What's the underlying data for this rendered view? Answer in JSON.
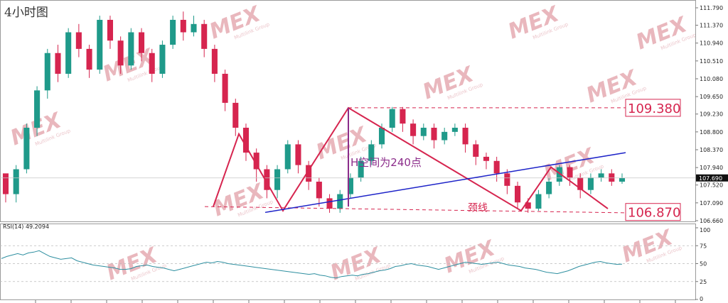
{
  "chart_data": [
    {
      "type": "candlestick",
      "title": "4小时图",
      "ylim": [
        106.66,
        111.79
      ],
      "y_ticks": [
        111.79,
        111.37,
        110.94,
        110.51,
        110.08,
        109.65,
        109.23,
        108.8,
        108.37,
        107.94,
        107.52,
        107.09,
        106.66
      ],
      "y_tick_labels": [
        "111.790",
        "111.370",
        "110.940",
        "110.510",
        "110.080",
        "109.650",
        "109.230",
        "108.800",
        "108.370",
        "107.940",
        "107.520",
        "107.090",
        "106.660"
      ],
      "current_price": 107.69,
      "current_price_label": "107.690",
      "candles": [
        [
          107.8,
          107.3,
          107.6,
          107.1
        ],
        [
          107.3,
          107.9,
          108.0,
          107.1
        ],
        [
          107.9,
          108.9,
          109.0,
          107.8
        ],
        [
          108.9,
          109.8,
          109.9,
          108.7
        ],
        [
          109.8,
          110.7,
          110.8,
          109.6
        ],
        [
          110.7,
          110.2,
          110.9,
          110.0
        ],
        [
          110.2,
          111.2,
          111.3,
          110.1
        ],
        [
          111.2,
          110.8,
          111.4,
          110.6
        ],
        [
          110.8,
          110.3,
          110.9,
          110.1
        ],
        [
          110.3,
          111.5,
          111.6,
          110.2
        ],
        [
          111.5,
          111.0,
          111.6,
          110.8
        ],
        [
          111.0,
          110.4,
          111.1,
          110.2
        ],
        [
          110.4,
          111.2,
          111.3,
          110.3
        ],
        [
          111.2,
          110.7,
          111.3,
          110.5
        ],
        [
          110.7,
          110.2,
          110.8,
          110.0
        ],
        [
          110.2,
          110.9,
          111.0,
          110.1
        ],
        [
          110.9,
          111.5,
          111.6,
          110.8
        ],
        [
          111.5,
          111.2,
          111.7,
          111.0
        ],
        [
          111.2,
          111.4,
          111.6,
          111.1
        ],
        [
          111.4,
          110.8,
          111.5,
          110.6
        ],
        [
          110.8,
          110.2,
          110.9,
          110.0
        ],
        [
          110.2,
          109.5,
          110.3,
          109.3
        ],
        [
          109.5,
          108.9,
          109.6,
          108.7
        ],
        [
          108.9,
          108.3,
          109.0,
          108.1
        ],
        [
          108.3,
          107.9,
          108.4,
          107.6
        ],
        [
          107.9,
          107.4,
          108.0,
          107.2
        ],
        [
          107.4,
          107.9,
          108.0,
          107.2
        ],
        [
          107.9,
          108.5,
          108.6,
          107.8
        ],
        [
          108.5,
          108.0,
          108.6,
          107.8
        ],
        [
          108.0,
          107.6,
          108.1,
          107.4
        ],
        [
          107.6,
          107.2,
          107.7,
          107.0
        ],
        [
          107.2,
          106.95,
          107.3,
          106.85
        ],
        [
          106.95,
          107.3,
          107.4,
          106.85
        ],
        [
          107.3,
          107.7,
          107.8,
          107.2
        ],
        [
          107.7,
          108.1,
          108.2,
          107.6
        ],
        [
          108.1,
          108.5,
          108.6,
          108.0
        ],
        [
          108.5,
          108.9,
          109.0,
          108.4
        ],
        [
          108.9,
          109.35,
          109.4,
          108.8
        ],
        [
          109.35,
          109.0,
          109.4,
          108.8
        ],
        [
          109.0,
          108.7,
          109.1,
          108.5
        ],
        [
          108.7,
          108.9,
          109.0,
          108.6
        ],
        [
          108.9,
          108.6,
          109.0,
          108.4
        ],
        [
          108.6,
          108.8,
          108.9,
          108.5
        ],
        [
          108.8,
          108.9,
          109.0,
          108.7
        ],
        [
          108.9,
          108.5,
          109.0,
          108.3
        ],
        [
          108.5,
          108.2,
          108.6,
          108.0
        ],
        [
          108.2,
          108.1,
          108.3,
          107.9
        ],
        [
          108.1,
          107.8,
          108.2,
          107.6
        ],
        [
          107.8,
          107.5,
          107.9,
          107.3
        ],
        [
          107.5,
          107.1,
          107.6,
          106.95
        ],
        [
          107.1,
          106.95,
          107.2,
          106.85
        ],
        [
          106.95,
          107.3,
          107.4,
          106.9
        ],
        [
          107.3,
          107.6,
          107.7,
          107.2
        ],
        [
          107.6,
          107.95,
          108.0,
          107.5
        ],
        [
          107.95,
          107.7,
          108.0,
          107.5
        ],
        [
          107.7,
          107.4,
          107.8,
          107.2
        ],
        [
          107.4,
          107.7,
          107.8,
          107.3
        ],
        [
          107.7,
          107.8,
          107.9,
          107.6
        ],
        [
          107.8,
          107.6,
          107.9,
          107.5
        ],
        [
          107.6,
          107.69,
          107.8,
          107.55
        ]
      ],
      "annotations": {
        "upper_line_label": "109.380",
        "lower_line_label": "106.870",
        "height_label": "H空间为240点",
        "neckline_label": "颈线"
      }
    },
    {
      "type": "line",
      "indicator_label": "RSI(14) 49.2094",
      "ylim": [
        0,
        100
      ],
      "y_ticks": [
        100,
        75,
        50,
        25,
        0
      ],
      "y_tick_labels": [
        "100",
        "75",
        "50",
        "25",
        "0"
      ],
      "values": [
        57,
        60,
        62,
        64,
        62,
        65,
        66,
        68,
        64,
        60,
        58,
        56,
        57,
        58,
        54,
        52,
        50,
        48,
        47,
        46,
        45,
        44,
        42,
        42,
        43,
        46,
        47,
        48,
        46,
        45,
        44,
        42,
        40,
        42,
        44,
        46,
        48,
        50,
        52,
        51,
        53,
        52,
        50,
        49,
        48,
        47,
        46,
        45,
        44,
        43,
        42,
        41,
        40,
        39,
        38,
        37,
        36,
        35,
        36,
        34,
        33,
        31,
        30,
        32,
        33,
        34,
        33,
        35,
        36,
        38,
        40,
        41,
        43,
        46,
        47,
        49,
        50,
        48,
        47,
        46,
        44,
        42,
        44,
        46,
        48,
        50,
        52,
        51,
        50,
        49,
        50,
        51,
        52,
        50,
        48,
        47,
        46,
        44,
        43,
        42,
        40,
        38,
        37,
        36,
        38,
        40,
        43,
        46,
        48,
        50,
        52,
        53,
        51,
        50,
        49,
        49.2
      ]
    }
  ],
  "watermark": {
    "text": "MEX",
    "sub": "Multilink Group",
    "color": "#e9b7bd"
  },
  "colors": {
    "bull": "#1f9a8a",
    "bear": "#d6254f",
    "pattern": "#d6254f",
    "trend": "#1c22c8",
    "height": "#8b2c8a",
    "rsi": "#2e8fa0"
  }
}
